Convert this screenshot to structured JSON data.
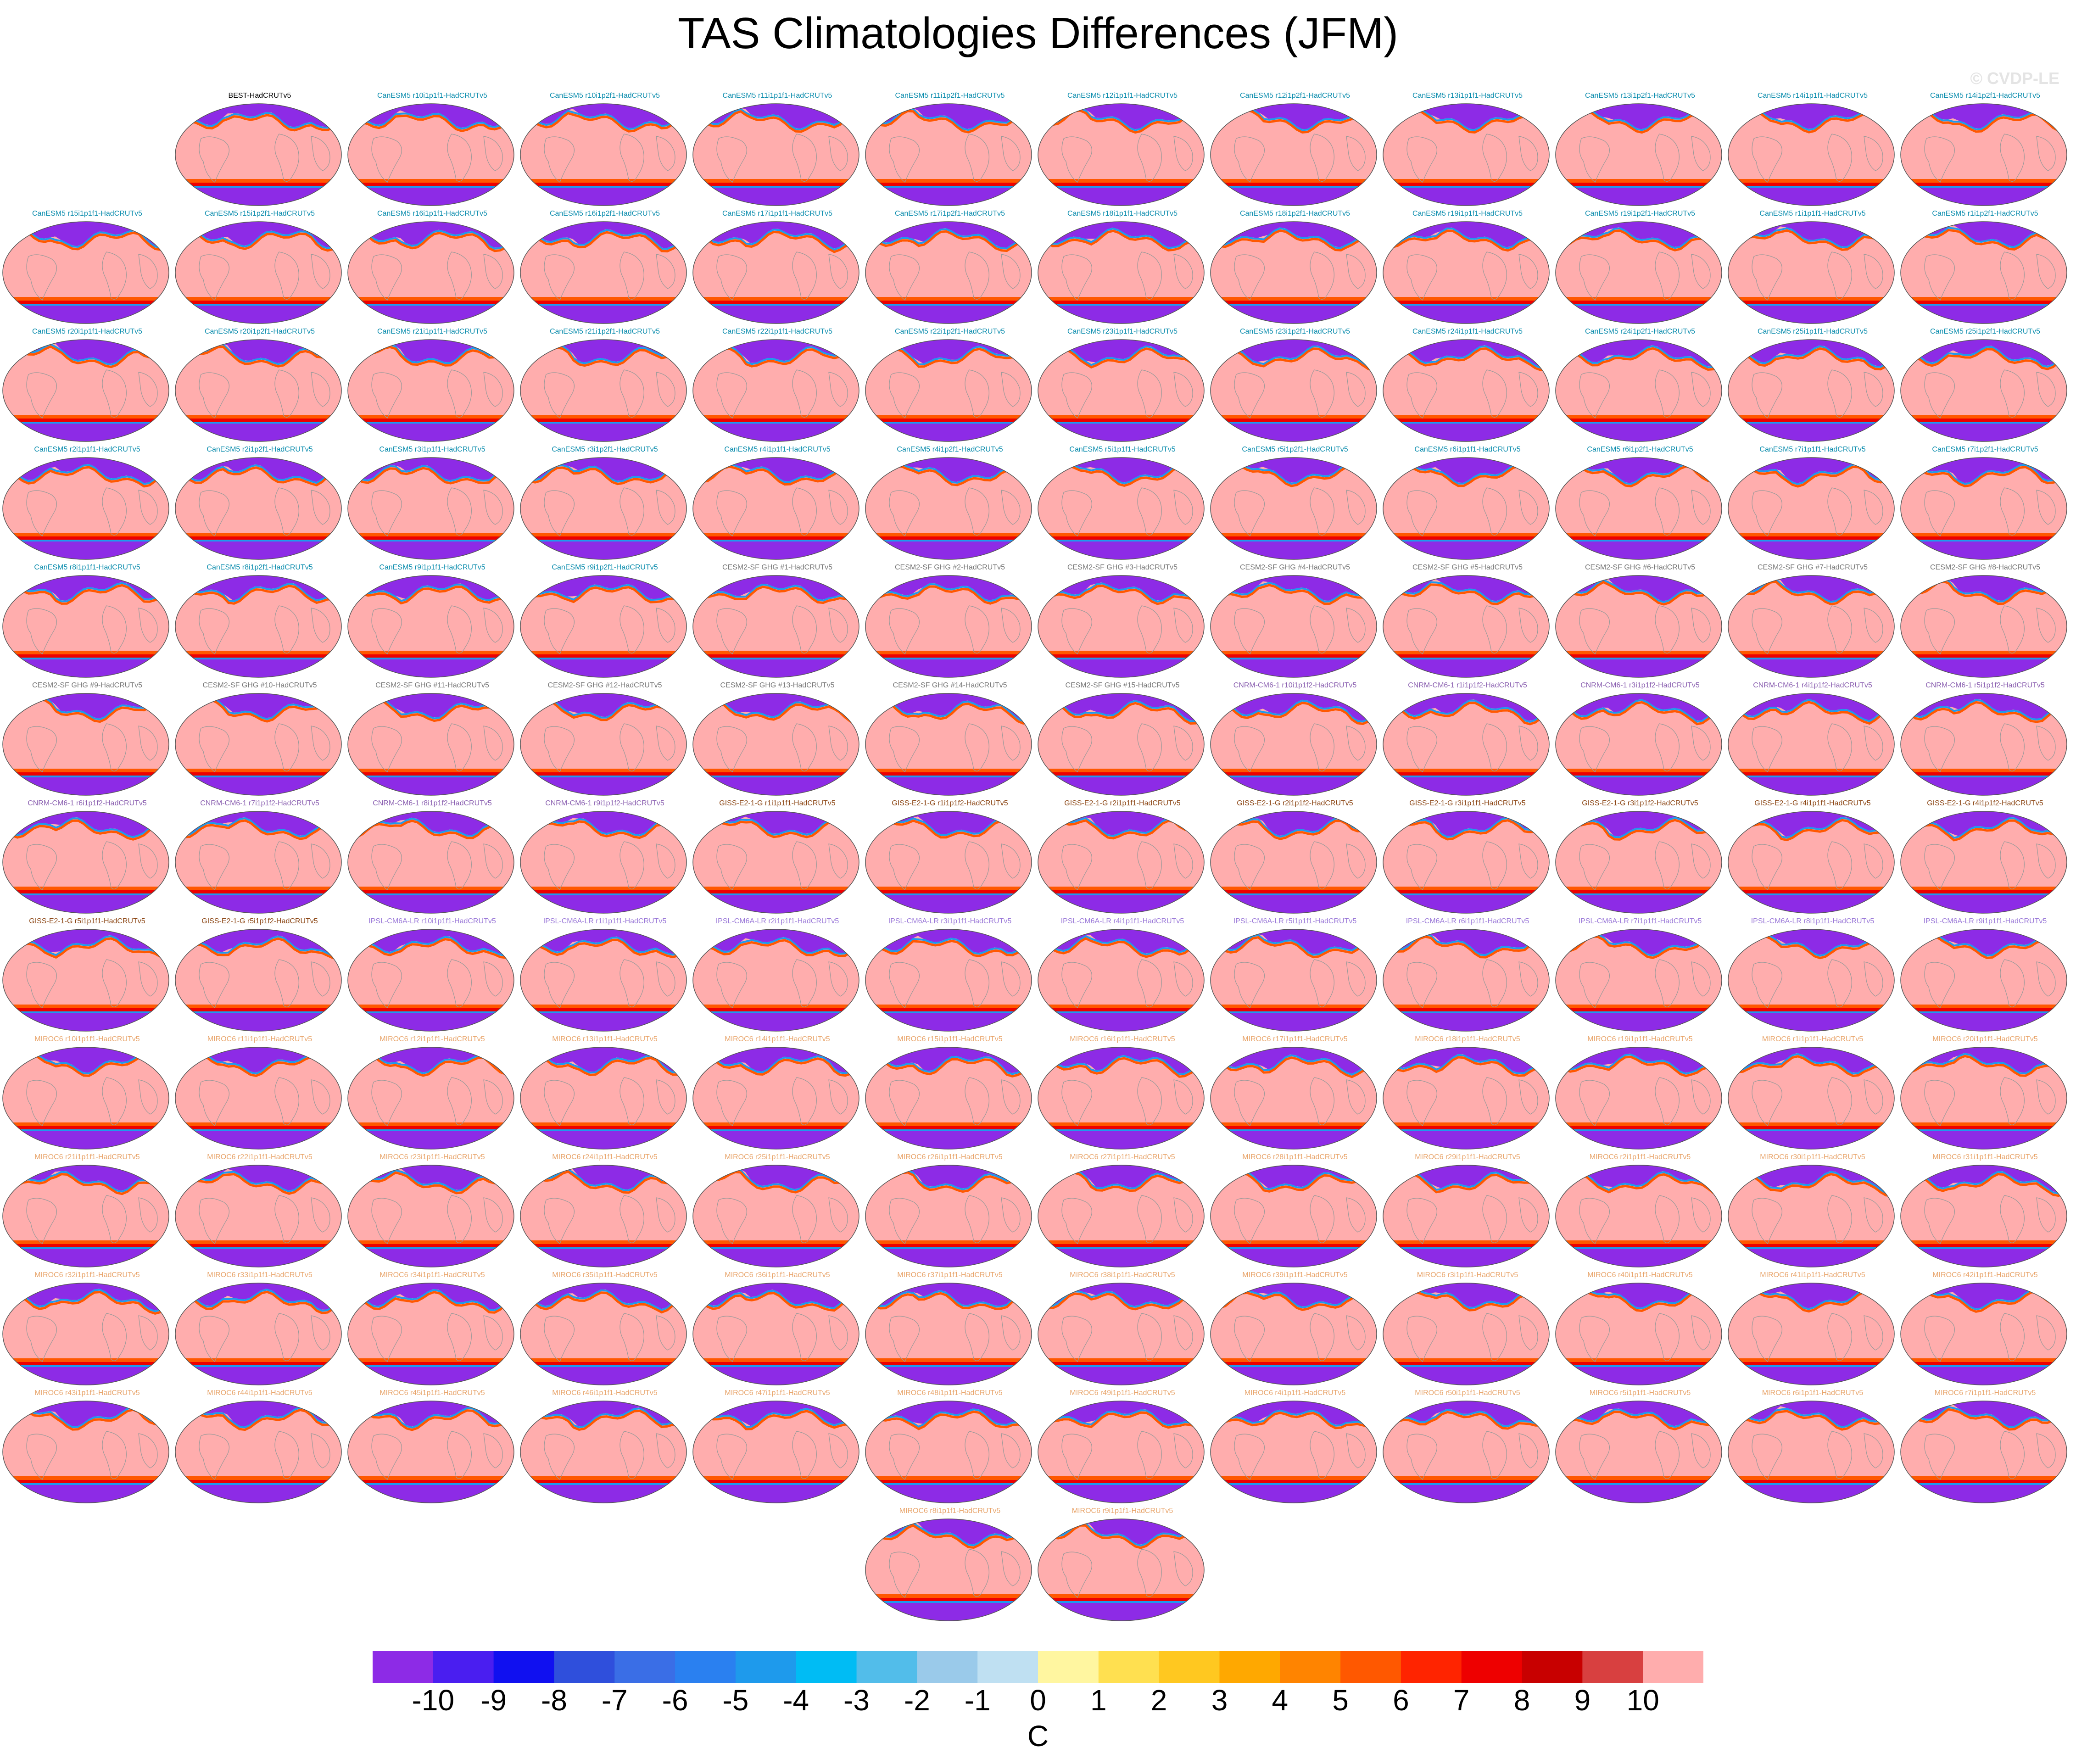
{
  "title": "TAS Climatologies Differences (JFM)",
  "watermark": "© CVDP-LE",
  "colorbar": {
    "units": "C",
    "tick_labels": [
      "-10",
      "-9",
      "-8",
      "-7",
      "-6",
      "-5",
      "-4",
      "-3",
      "-2",
      "-1",
      "0",
      "1",
      "2",
      "3",
      "4",
      "5",
      "6",
      "7",
      "8",
      "9",
      "10"
    ],
    "colors": [
      "#8d2be6",
      "#4a1ef0",
      "#1010f0",
      "#2f4fdc",
      "#3a6ee6",
      "#2a80f0",
      "#1e9aec",
      "#00bcf4",
      "#52bdea",
      "#9acaea",
      "#bfe0f2",
      "#fff6a0",
      "#ffe050",
      "#ffc820",
      "#ffa800",
      "#ff8400",
      "#ff5800",
      "#ff2400",
      "#ee0000",
      "#c80000",
      "#d84040",
      "#ffadad"
    ]
  },
  "label_colors": {
    "BEST": "#000000",
    "CanESM5": "#0a8cad",
    "CESM2": "#777777",
    "CNRM": "#8a5fb0",
    "GISS": "#8b4513",
    "IPSL": "#9a78d8",
    "MIROC6": "#e8a46a"
  },
  "map_colors": {
    "land": "#ffadad",
    "ocean": "#ffadad",
    "arctic": "#8d2be6",
    "arctic_edge": "#1e9aec",
    "warm_band": "#ff5800",
    "hot_band": "#ee0000",
    "antarctic": "#8d2be6",
    "outline": "#555555",
    "coast": "#999999"
  },
  "panels": [
    {
      "label": "BEST-HadCRUTv5",
      "group": "BEST"
    },
    {
      "label": "CanESM5 r10i1p1f1-HadCRUTv5",
      "group": "CanESM5"
    },
    {
      "label": "CanESM5 r10i1p2f1-HadCRUTv5",
      "group": "CanESM5"
    },
    {
      "label": "CanESM5 r11i1p1f1-HadCRUTv5",
      "group": "CanESM5"
    },
    {
      "label": "CanESM5 r11i1p2f1-HadCRUTv5",
      "group": "CanESM5"
    },
    {
      "label": "CanESM5 r12i1p1f1-HadCRUTv5",
      "group": "CanESM5"
    },
    {
      "label": "CanESM5 r12i1p2f1-HadCRUTv5",
      "group": "CanESM5"
    },
    {
      "label": "CanESM5 r13i1p1f1-HadCRUTv5",
      "group": "CanESM5"
    },
    {
      "label": "CanESM5 r13i1p2f1-HadCRUTv5",
      "group": "CanESM5"
    },
    {
      "label": "CanESM5 r14i1p1f1-HadCRUTv5",
      "group": "CanESM5"
    },
    {
      "label": "CanESM5 r14i1p2f1-HadCRUTv5",
      "group": "CanESM5"
    },
    {
      "label": "CanESM5 r15i1p1f1-HadCRUTv5",
      "group": "CanESM5"
    },
    {
      "label": "CanESM5 r15i1p2f1-HadCRUTv5",
      "group": "CanESM5"
    },
    {
      "label": "CanESM5 r16i1p1f1-HadCRUTv5",
      "group": "CanESM5"
    },
    {
      "label": "CanESM5 r16i1p2f1-HadCRUTv5",
      "group": "CanESM5"
    },
    {
      "label": "CanESM5 r17i1p1f1-HadCRUTv5",
      "group": "CanESM5"
    },
    {
      "label": "CanESM5 r17i1p2f1-HadCRUTv5",
      "group": "CanESM5"
    },
    {
      "label": "CanESM5 r18i1p1f1-HadCRUTv5",
      "group": "CanESM5"
    },
    {
      "label": "CanESM5 r18i1p2f1-HadCRUTv5",
      "group": "CanESM5"
    },
    {
      "label": "CanESM5 r19i1p1f1-HadCRUTv5",
      "group": "CanESM5"
    },
    {
      "label": "CanESM5 r19i1p2f1-HadCRUTv5",
      "group": "CanESM5"
    },
    {
      "label": "CanESM5 r1i1p1f1-HadCRUTv5",
      "group": "CanESM5"
    },
    {
      "label": "CanESM5 r1i1p2f1-HadCRUTv5",
      "group": "CanESM5"
    },
    {
      "label": "CanESM5 r20i1p1f1-HadCRUTv5",
      "group": "CanESM5"
    },
    {
      "label": "CanESM5 r20i1p2f1-HadCRUTv5",
      "group": "CanESM5"
    },
    {
      "label": "CanESM5 r21i1p1f1-HadCRUTv5",
      "group": "CanESM5"
    },
    {
      "label": "CanESM5 r21i1p2f1-HadCRUTv5",
      "group": "CanESM5"
    },
    {
      "label": "CanESM5 r22i1p1f1-HadCRUTv5",
      "group": "CanESM5"
    },
    {
      "label": "CanESM5 r22i1p2f1-HadCRUTv5",
      "group": "CanESM5"
    },
    {
      "label": "CanESM5 r23i1p1f1-HadCRUTv5",
      "group": "CanESM5"
    },
    {
      "label": "CanESM5 r23i1p2f1-HadCRUTv5",
      "group": "CanESM5"
    },
    {
      "label": "CanESM5 r24i1p1f1-HadCRUTv5",
      "group": "CanESM5"
    },
    {
      "label": "CanESM5 r24i1p2f1-HadCRUTv5",
      "group": "CanESM5"
    },
    {
      "label": "CanESM5 r25i1p1f1-HadCRUTv5",
      "group": "CanESM5"
    },
    {
      "label": "CanESM5 r25i1p2f1-HadCRUTv5",
      "group": "CanESM5"
    },
    {
      "label": "CanESM5 r2i1p1f1-HadCRUTv5",
      "group": "CanESM5"
    },
    {
      "label": "CanESM5 r2i1p2f1-HadCRUTv5",
      "group": "CanESM5"
    },
    {
      "label": "CanESM5 r3i1p1f1-HadCRUTv5",
      "group": "CanESM5"
    },
    {
      "label": "CanESM5 r3i1p2f1-HadCRUTv5",
      "group": "CanESM5"
    },
    {
      "label": "CanESM5 r4i1p1f1-HadCRUTv5",
      "group": "CanESM5"
    },
    {
      "label": "CanESM5 r4i1p2f1-HadCRUTv5",
      "group": "CanESM5"
    },
    {
      "label": "CanESM5 r5i1p1f1-HadCRUTv5",
      "group": "CanESM5"
    },
    {
      "label": "CanESM5 r5i1p2f1-HadCRUTv5",
      "group": "CanESM5"
    },
    {
      "label": "CanESM5 r6i1p1f1-HadCRUTv5",
      "group": "CanESM5"
    },
    {
      "label": "CanESM5 r6i1p2f1-HadCRUTv5",
      "group": "CanESM5"
    },
    {
      "label": "CanESM5 r7i1p1f1-HadCRUTv5",
      "group": "CanESM5"
    },
    {
      "label": "CanESM5 r7i1p2f1-HadCRUTv5",
      "group": "CanESM5"
    },
    {
      "label": "CanESM5 r8i1p1f1-HadCRUTv5",
      "group": "CanESM5"
    },
    {
      "label": "CanESM5 r8i1p2f1-HadCRUTv5",
      "group": "CanESM5"
    },
    {
      "label": "CanESM5 r9i1p1f1-HadCRUTv5",
      "group": "CanESM5"
    },
    {
      "label": "CanESM5 r9i1p2f1-HadCRUTv5",
      "group": "CanESM5"
    },
    {
      "label": "CESM2-SF GHG #1-HadCRUTv5",
      "group": "CESM2"
    },
    {
      "label": "CESM2-SF GHG #2-HadCRUTv5",
      "group": "CESM2"
    },
    {
      "label": "CESM2-SF GHG #3-HadCRUTv5",
      "group": "CESM2"
    },
    {
      "label": "CESM2-SF GHG #4-HadCRUTv5",
      "group": "CESM2"
    },
    {
      "label": "CESM2-SF GHG #5-HadCRUTv5",
      "group": "CESM2"
    },
    {
      "label": "CESM2-SF GHG #6-HadCRUTv5",
      "group": "CESM2"
    },
    {
      "label": "CESM2-SF GHG #7-HadCRUTv5",
      "group": "CESM2"
    },
    {
      "label": "CESM2-SF GHG #8-HadCRUTv5",
      "group": "CESM2"
    },
    {
      "label": "CESM2-SF GHG #9-HadCRUTv5",
      "group": "CESM2"
    },
    {
      "label": "CESM2-SF GHG #10-HadCRUTv5",
      "group": "CESM2"
    },
    {
      "label": "CESM2-SF GHG #11-HadCRUTv5",
      "group": "CESM2"
    },
    {
      "label": "CESM2-SF GHG #12-HadCRUTv5",
      "group": "CESM2"
    },
    {
      "label": "CESM2-SF GHG #13-HadCRUTv5",
      "group": "CESM2"
    },
    {
      "label": "CESM2-SF GHG #14-HadCRUTv5",
      "group": "CESM2"
    },
    {
      "label": "CESM2-SF GHG #15-HadCRUTv5",
      "group": "CESM2"
    },
    {
      "label": "CNRM-CM6-1 r10i1p1f2-HadCRUTv5",
      "group": "CNRM"
    },
    {
      "label": "CNRM-CM6-1 r1i1p1f2-HadCRUTv5",
      "group": "CNRM"
    },
    {
      "label": "CNRM-CM6-1 r3i1p1f2-HadCRUTv5",
      "group": "CNRM"
    },
    {
      "label": "CNRM-CM6-1 r4i1p1f2-HadCRUTv5",
      "group": "CNRM"
    },
    {
      "label": "CNRM-CM6-1 r5i1p1f2-HadCRUTv5",
      "group": "CNRM"
    },
    {
      "label": "CNRM-CM6-1 r6i1p1f2-HadCRUTv5",
      "group": "CNRM"
    },
    {
      "label": "CNRM-CM6-1 r7i1p1f2-HadCRUTv5",
      "group": "CNRM"
    },
    {
      "label": "CNRM-CM6-1 r8i1p1f2-HadCRUTv5",
      "group": "CNRM"
    },
    {
      "label": "CNRM-CM6-1 r9i1p1f2-HadCRUTv5",
      "group": "CNRM"
    },
    {
      "label": "GISS-E2-1-G r1i1p1f1-HadCRUTv5",
      "group": "GISS"
    },
    {
      "label": "GISS-E2-1-G r1i1p1f2-HadCRUTv5",
      "group": "GISS"
    },
    {
      "label": "GISS-E2-1-G r2i1p1f1-HadCRUTv5",
      "group": "GISS"
    },
    {
      "label": "GISS-E2-1-G r2i1p1f2-HadCRUTv5",
      "group": "GISS"
    },
    {
      "label": "GISS-E2-1-G r3i1p1f1-HadCRUTv5",
      "group": "GISS"
    },
    {
      "label": "GISS-E2-1-G r3i1p1f2-HadCRUTv5",
      "group": "GISS"
    },
    {
      "label": "GISS-E2-1-G r4i1p1f1-HadCRUTv5",
      "group": "GISS"
    },
    {
      "label": "GISS-E2-1-G r4i1p1f2-HadCRUTv5",
      "group": "GISS"
    },
    {
      "label": "GISS-E2-1-G r5i1p1f1-HadCRUTv5",
      "group": "GISS"
    },
    {
      "label": "GISS-E2-1-G r5i1p1f2-HadCRUTv5",
      "group": "GISS"
    },
    {
      "label": "IPSL-CM6A-LR r10i1p1f1-HadCRUTv5",
      "group": "IPSL"
    },
    {
      "label": "IPSL-CM6A-LR r1i1p1f1-HadCRUTv5",
      "group": "IPSL"
    },
    {
      "label": "IPSL-CM6A-LR r2i1p1f1-HadCRUTv5",
      "group": "IPSL"
    },
    {
      "label": "IPSL-CM6A-LR r3i1p1f1-HadCRUTv5",
      "group": "IPSL"
    },
    {
      "label": "IPSL-CM6A-LR r4i1p1f1-HadCRUTv5",
      "group": "IPSL"
    },
    {
      "label": "IPSL-CM6A-LR r5i1p1f1-HadCRUTv5",
      "group": "IPSL"
    },
    {
      "label": "IPSL-CM6A-LR r6i1p1f1-HadCRUTv5",
      "group": "IPSL"
    },
    {
      "label": "IPSL-CM6A-LR r7i1p1f1-HadCRUTv5",
      "group": "IPSL"
    },
    {
      "label": "IPSL-CM6A-LR r8i1p1f1-HadCRUTv5",
      "group": "IPSL"
    },
    {
      "label": "IPSL-CM6A-LR r9i1p1f1-HadCRUTv5",
      "group": "IPSL"
    },
    {
      "label": "MIROC6 r10i1p1f1-HadCRUTv5",
      "group": "MIROC6"
    },
    {
      "label": "MIROC6 r11i1p1f1-HadCRUTv5",
      "group": "MIROC6"
    },
    {
      "label": "MIROC6 r12i1p1f1-HadCRUTv5",
      "group": "MIROC6"
    },
    {
      "label": "MIROC6 r13i1p1f1-HadCRUTv5",
      "group": "MIROC6"
    },
    {
      "label": "MIROC6 r14i1p1f1-HadCRUTv5",
      "group": "MIROC6"
    },
    {
      "label": "MIROC6 r15i1p1f1-HadCRUTv5",
      "group": "MIROC6"
    },
    {
      "label": "MIROC6 r16i1p1f1-HadCRUTv5",
      "group": "MIROC6"
    },
    {
      "label": "MIROC6 r17i1p1f1-HadCRUTv5",
      "group": "MIROC6"
    },
    {
      "label": "MIROC6 r18i1p1f1-HadCRUTv5",
      "group": "MIROC6"
    },
    {
      "label": "MIROC6 r19i1p1f1-HadCRUTv5",
      "group": "MIROC6"
    },
    {
      "label": "MIROC6 r1i1p1f1-HadCRUTv5",
      "group": "MIROC6"
    },
    {
      "label": "MIROC6 r20i1p1f1-HadCRUTv5",
      "group": "MIROC6"
    },
    {
      "label": "MIROC6 r21i1p1f1-HadCRUTv5",
      "group": "MIROC6"
    },
    {
      "label": "MIROC6 r22i1p1f1-HadCRUTv5",
      "group": "MIROC6"
    },
    {
      "label": "MIROC6 r23i1p1f1-HadCRUTv5",
      "group": "MIROC6"
    },
    {
      "label": "MIROC6 r24i1p1f1-HadCRUTv5",
      "group": "MIROC6"
    },
    {
      "label": "MIROC6 r25i1p1f1-HadCRUTv5",
      "group": "MIROC6"
    },
    {
      "label": "MIROC6 r26i1p1f1-HadCRUTv5",
      "group": "MIROC6"
    },
    {
      "label": "MIROC6 r27i1p1f1-HadCRUTv5",
      "group": "MIROC6"
    },
    {
      "label": "MIROC6 r28i1p1f1-HadCRUTv5",
      "group": "MIROC6"
    },
    {
      "label": "MIROC6 r29i1p1f1-HadCRUTv5",
      "group": "MIROC6"
    },
    {
      "label": "MIROC6 r2i1p1f1-HadCRUTv5",
      "group": "MIROC6"
    },
    {
      "label": "MIROC6 r30i1p1f1-HadCRUTv5",
      "group": "MIROC6"
    },
    {
      "label": "MIROC6 r31i1p1f1-HadCRUTv5",
      "group": "MIROC6"
    },
    {
      "label": "MIROC6 r32i1p1f1-HadCRUTv5",
      "group": "MIROC6"
    },
    {
      "label": "MIROC6 r33i1p1f1-HadCRUTv5",
      "group": "MIROC6"
    },
    {
      "label": "MIROC6 r34i1p1f1-HadCRUTv5",
      "group": "MIROC6"
    },
    {
      "label": "MIROC6 r35i1p1f1-HadCRUTv5",
      "group": "MIROC6"
    },
    {
      "label": "MIROC6 r36i1p1f1-HadCRUTv5",
      "group": "MIROC6"
    },
    {
      "label": "MIROC6 r37i1p1f1-HadCRUTv5",
      "group": "MIROC6"
    },
    {
      "label": "MIROC6 r38i1p1f1-HadCRUTv5",
      "group": "MIROC6"
    },
    {
      "label": "MIROC6 r39i1p1f1-HadCRUTv5",
      "group": "MIROC6"
    },
    {
      "label": "MIROC6 r3i1p1f1-HadCRUTv5",
      "group": "MIROC6"
    },
    {
      "label": "MIROC6 r40i1p1f1-HadCRUTv5",
      "group": "MIROC6"
    },
    {
      "label": "MIROC6 r41i1p1f1-HadCRUTv5",
      "group": "MIROC6"
    },
    {
      "label": "MIROC6 r42i1p1f1-HadCRUTv5",
      "group": "MIROC6"
    },
    {
      "label": "MIROC6 r43i1p1f1-HadCRUTv5",
      "group": "MIROC6"
    },
    {
      "label": "MIROC6 r44i1p1f1-HadCRUTv5",
      "group": "MIROC6"
    },
    {
      "label": "MIROC6 r45i1p1f1-HadCRUTv5",
      "group": "MIROC6"
    },
    {
      "label": "MIROC6 r46i1p1f1-HadCRUTv5",
      "group": "MIROC6"
    },
    {
      "label": "MIROC6 r47i1p1f1-HadCRUTv5",
      "group": "MIROC6"
    },
    {
      "label": "MIROC6 r48i1p1f1-HadCRUTv5",
      "group": "MIROC6"
    },
    {
      "label": "MIROC6 r49i1p1f1-HadCRUTv5",
      "group": "MIROC6"
    },
    {
      "label": "MIROC6 r4i1p1f1-HadCRUTv5",
      "group": "MIROC6"
    },
    {
      "label": "MIROC6 r50i1p1f1-HadCRUTv5",
      "group": "MIROC6"
    },
    {
      "label": "MIROC6 r5i1p1f1-HadCRUTv5",
      "group": "MIROC6"
    },
    {
      "label": "MIROC6 r6i1p1f1-HadCRUTv5",
      "group": "MIROC6"
    },
    {
      "label": "MIROC6 r7i1p1f1-HadCRUTv5",
      "group": "MIROC6"
    },
    {
      "label": "MIROC6 r8i1p1f1-HadCRUTv5",
      "group": "MIROC6"
    },
    {
      "label": "MIROC6 r9i1p1f1-HadCRUTv5",
      "group": "MIROC6"
    }
  ]
}
